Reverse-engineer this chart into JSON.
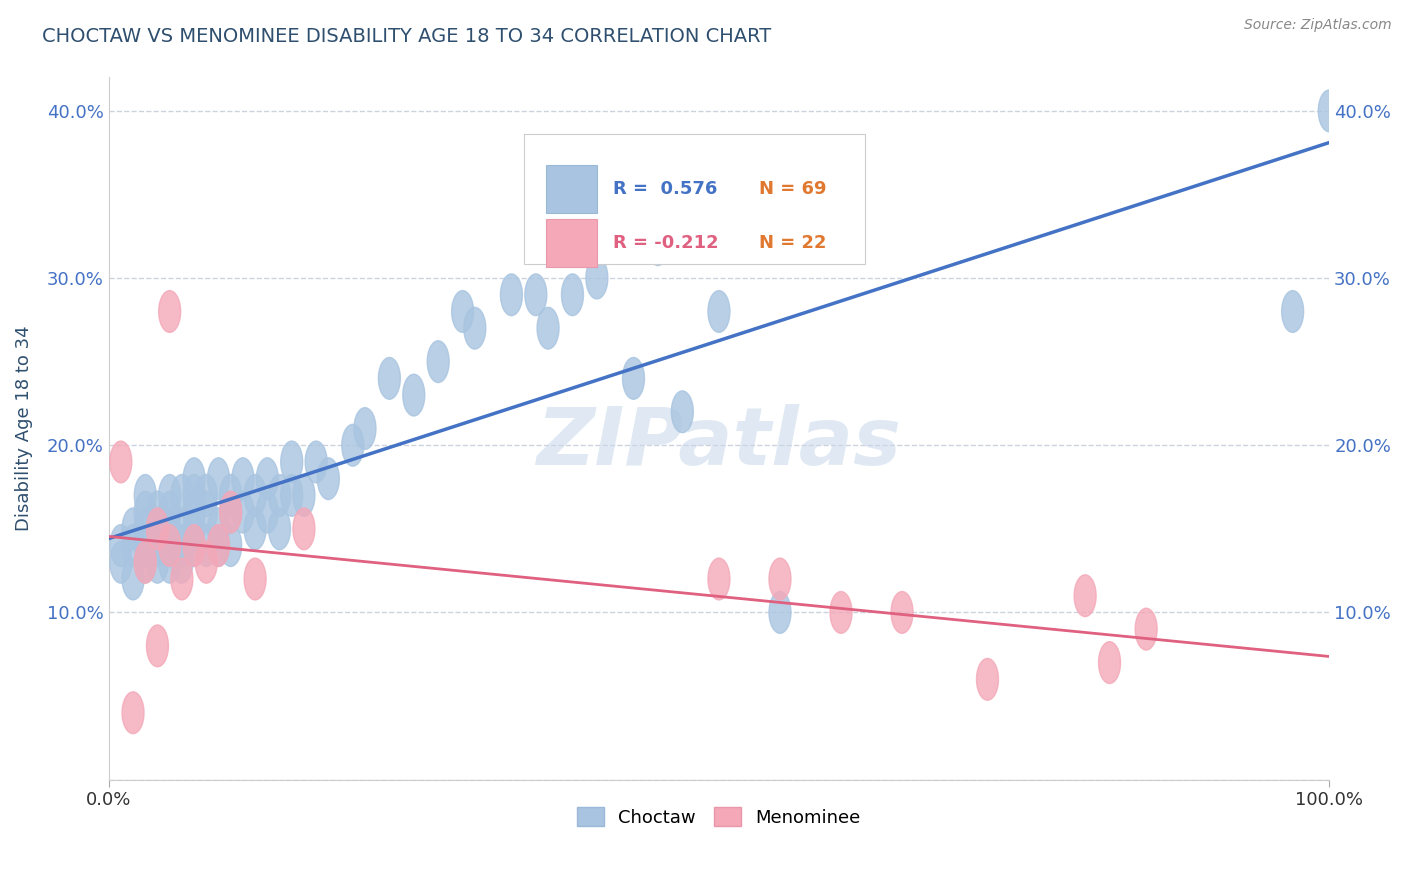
{
  "title": "CHOCTAW VS MENOMINEE DISABILITY AGE 18 TO 34 CORRELATION CHART",
  "source_text": "Source: ZipAtlas.com",
  "ylabel": "Disability Age 18 to 34",
  "watermark": "ZIPatlas",
  "xlim": [
    0.0,
    1.0
  ],
  "ylim": [
    0.0,
    0.42
  ],
  "yticks": [
    0.0,
    0.1,
    0.2,
    0.3,
    0.4
  ],
  "choctaw_color": "#a8c4e0",
  "menominee_color": "#f4a8b8",
  "choctaw_line_color": "#4472c4",
  "menominee_line_color": "#e06080",
  "legend_choctaw_label": "Choctaw",
  "legend_menominee_label": "Menominee",
  "R_choctaw": 0.576,
  "N_choctaw": 69,
  "R_menominee": -0.212,
  "N_menominee": 22,
  "choctaw_x": [
    0.01,
    0.01,
    0.02,
    0.02,
    0.02,
    0.03,
    0.03,
    0.03,
    0.03,
    0.03,
    0.04,
    0.04,
    0.04,
    0.04,
    0.05,
    0.05,
    0.05,
    0.05,
    0.05,
    0.06,
    0.06,
    0.06,
    0.06,
    0.07,
    0.07,
    0.07,
    0.07,
    0.07,
    0.08,
    0.08,
    0.08,
    0.09,
    0.09,
    0.09,
    0.1,
    0.1,
    0.1,
    0.11,
    0.11,
    0.12,
    0.12,
    0.13,
    0.13,
    0.14,
    0.14,
    0.15,
    0.15,
    0.16,
    0.17,
    0.18,
    0.2,
    0.21,
    0.23,
    0.25,
    0.27,
    0.29,
    0.3,
    0.33,
    0.35,
    0.36,
    0.38,
    0.4,
    0.43,
    0.45,
    0.47,
    0.5,
    0.55,
    0.97,
    1.0
  ],
  "choctaw_y": [
    0.13,
    0.14,
    0.12,
    0.14,
    0.15,
    0.13,
    0.14,
    0.15,
    0.16,
    0.17,
    0.13,
    0.14,
    0.15,
    0.16,
    0.13,
    0.14,
    0.15,
    0.16,
    0.17,
    0.13,
    0.14,
    0.15,
    0.17,
    0.14,
    0.15,
    0.16,
    0.17,
    0.18,
    0.14,
    0.16,
    0.17,
    0.14,
    0.15,
    0.18,
    0.14,
    0.16,
    0.17,
    0.16,
    0.18,
    0.15,
    0.17,
    0.16,
    0.18,
    0.15,
    0.17,
    0.17,
    0.19,
    0.17,
    0.19,
    0.18,
    0.2,
    0.21,
    0.24,
    0.23,
    0.25,
    0.28,
    0.27,
    0.29,
    0.29,
    0.27,
    0.29,
    0.3,
    0.24,
    0.32,
    0.22,
    0.28,
    0.1,
    0.28,
    0.4
  ],
  "menominee_x": [
    0.01,
    0.02,
    0.03,
    0.04,
    0.04,
    0.05,
    0.05,
    0.06,
    0.07,
    0.08,
    0.09,
    0.1,
    0.12,
    0.16,
    0.5,
    0.55,
    0.6,
    0.65,
    0.72,
    0.8,
    0.82,
    0.85
  ],
  "menominee_y": [
    0.19,
    0.04,
    0.13,
    0.15,
    0.08,
    0.14,
    0.28,
    0.12,
    0.14,
    0.13,
    0.14,
    0.16,
    0.12,
    0.15,
    0.12,
    0.12,
    0.1,
    0.1,
    0.06,
    0.11,
    0.07,
    0.09
  ],
  "background_color": "#ffffff",
  "grid_color": "#c0c8d8",
  "title_color": "#2f4f6f",
  "axis_label_color": "#2f4f6f",
  "tick_label_color": "#4472c4",
  "source_color": "#888888"
}
